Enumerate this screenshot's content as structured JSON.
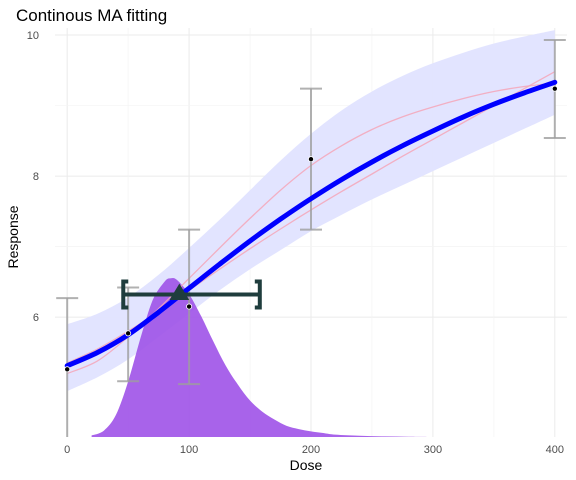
{
  "chart_data": {
    "type": "line",
    "title": "Continous MA fitting",
    "xlabel": "Dose",
    "ylabel": "Response",
    "xlim": [
      -10,
      410
    ],
    "ylim": [
      4.3,
      10.1
    ],
    "x_ticks": [
      0,
      100,
      200,
      300,
      400
    ],
    "y_ticks": [
      6,
      8,
      10
    ],
    "grid": true,
    "observed": [
      {
        "dose": 0,
        "mean": 5.26,
        "lower": 4.3,
        "upper": 6.27
      },
      {
        "dose": 50,
        "mean": 5.77,
        "lower": 5.09,
        "upper": 6.42
      },
      {
        "dose": 100,
        "mean": 6.15,
        "lower": 5.05,
        "upper": 7.24
      },
      {
        "dose": 200,
        "mean": 8.24,
        "lower": 7.24,
        "upper": 9.24
      },
      {
        "dose": 400,
        "mean": 9.24,
        "lower": 8.54,
        "upper": 9.93
      }
    ],
    "model_average": {
      "x": [
        0,
        25,
        50,
        75,
        100,
        125,
        150,
        175,
        200,
        225,
        250,
        275,
        300,
        325,
        350,
        375,
        400
      ],
      "y": [
        5.31,
        5.5,
        5.75,
        6.07,
        6.41,
        6.75,
        7.08,
        7.39,
        7.68,
        7.95,
        8.2,
        8.43,
        8.64,
        8.84,
        9.02,
        9.18,
        9.33
      ],
      "color": "#0000ff"
    },
    "credible_band": {
      "x": [
        0,
        25,
        50,
        75,
        100,
        125,
        150,
        175,
        200,
        225,
        250,
        275,
        300,
        325,
        350,
        375,
        400
      ],
      "lower": [
        4.95,
        5.15,
        5.4,
        5.72,
        6.05,
        6.38,
        6.68,
        6.95,
        7.22,
        7.45,
        7.67,
        7.87,
        8.07,
        8.27,
        8.47,
        8.67,
        8.87
      ],
      "upper": [
        5.9,
        6.05,
        6.28,
        6.6,
        6.98,
        7.38,
        7.8,
        8.22,
        8.6,
        8.93,
        9.2,
        9.42,
        9.6,
        9.75,
        9.88,
        9.98,
        10.07
      ],
      "color": "#e0e3ff"
    },
    "individual_models": [
      {
        "x": [
          0,
          25,
          50,
          75,
          100,
          125,
          150,
          175,
          200,
          225,
          250,
          275,
          300,
          325,
          350,
          375,
          400
        ],
        "y": [
          5.2,
          5.38,
          5.72,
          6.12,
          6.55,
          6.98,
          7.4,
          7.8,
          8.15,
          8.43,
          8.66,
          8.84,
          8.98,
          9.1,
          9.2,
          9.27,
          9.32
        ],
        "color": "#f4a6b8"
      },
      {
        "x": [
          0,
          25,
          50,
          75,
          100,
          125,
          150,
          175,
          200,
          225,
          250,
          275,
          300,
          325,
          350,
          375,
          400
        ],
        "y": [
          5.35,
          5.55,
          5.8,
          6.08,
          6.38,
          6.68,
          6.97,
          7.25,
          7.52,
          7.78,
          8.03,
          8.28,
          8.52,
          8.76,
          9.0,
          9.24,
          9.48
        ],
        "color": "#f4a6b8"
      }
    ],
    "bmd_density": {
      "x": [
        20,
        30,
        40,
        50,
        60,
        70,
        80,
        85,
        90,
        100,
        110,
        120,
        130,
        140,
        150,
        160,
        170,
        180,
        190,
        200,
        210,
        220,
        240,
        260,
        280,
        300
      ],
      "density": [
        0.01,
        0.04,
        0.14,
        0.35,
        0.62,
        0.86,
        0.98,
        1.0,
        0.99,
        0.9,
        0.76,
        0.6,
        0.45,
        0.33,
        0.23,
        0.16,
        0.11,
        0.07,
        0.05,
        0.035,
        0.025,
        0.015,
        0.008,
        0.004,
        0.002,
        0.0
      ],
      "peak_response": 6.55,
      "color": "#9f52e8"
    },
    "bmd_interval": {
      "bmd": 92,
      "bmdl": 46,
      "bmdu": 158,
      "response": 6.32,
      "color": "#1f3d3d"
    }
  }
}
